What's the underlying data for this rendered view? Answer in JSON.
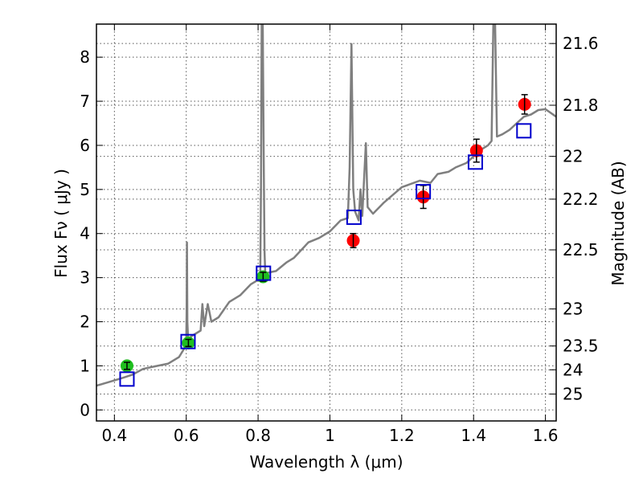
{
  "chart_data": {
    "type": "scatter",
    "xlabel": "Wavelength  λ (μm)",
    "ylabel": "Flux  Fν  ( μJy )",
    "y2label": "Magnitude (AB)",
    "xlim": [
      0.35,
      1.63
    ],
    "ylim": [
      -0.25,
      8.75
    ],
    "grid": true,
    "x_ticks": [
      0.4,
      0.6,
      0.8,
      1.0,
      1.2,
      1.4,
      1.6
    ],
    "x_tick_labels": [
      "0.4",
      "0.6",
      "0.8",
      "1",
      "1.2",
      "1.4",
      "1.6"
    ],
    "y_ticks": [
      0,
      1,
      2,
      3,
      4,
      5,
      6,
      7,
      8
    ],
    "y_tick_labels": [
      "0",
      "1",
      "2",
      "3",
      "4",
      "5",
      "6",
      "7",
      "8"
    ],
    "y2_ticks": [
      {
        "label": "21.6",
        "flux": 8.31
      },
      {
        "label": "21.8",
        "flux": 6.91
      },
      {
        "label": "22",
        "flux": 5.75
      },
      {
        "label": "22.2",
        "flux": 4.78
      },
      {
        "label": "22.5",
        "flux": 3.63
      },
      {
        "label": "23",
        "flux": 2.29
      },
      {
        "label": "23.5",
        "flux": 1.45
      },
      {
        "label": "24",
        "flux": 0.91
      },
      {
        "label": "25",
        "flux": 0.36
      }
    ],
    "colors": {
      "spectrum": "#7f7f7f",
      "green_points": "#1fbf1f",
      "red_points": "#ff0000",
      "model_squares": "#0000cc",
      "error_bars": "#000000"
    },
    "series": [
      {
        "marker": "circle-green",
        "points": [
          {
            "x": 0.435,
            "y": 1.0,
            "err": 0.08
          },
          {
            "x": 0.606,
            "y": 1.52,
            "err": 0.08
          },
          {
            "x": 0.814,
            "y": 3.02,
            "err": 0.1
          }
        ]
      },
      {
        "marker": "circle-red",
        "points": [
          {
            "x": 1.065,
            "y": 3.84,
            "err": 0.16
          },
          {
            "x": 1.26,
            "y": 4.83,
            "err": 0.26
          },
          {
            "x": 1.408,
            "y": 5.88,
            "err": 0.26
          },
          {
            "x": 1.542,
            "y": 6.93,
            "err": 0.22
          }
        ]
      },
      {
        "marker": "square-blue",
        "points": [
          {
            "x": 0.435,
            "y": 0.7
          },
          {
            "x": 0.605,
            "y": 1.55
          },
          {
            "x": 0.815,
            "y": 3.1
          },
          {
            "x": 1.067,
            "y": 4.37
          },
          {
            "x": 1.26,
            "y": 4.95
          },
          {
            "x": 1.405,
            "y": 5.62
          },
          {
            "x": 1.54,
            "y": 6.33
          }
        ]
      },
      {
        "marker": "line-gray",
        "points": [
          [
            0.35,
            0.55
          ],
          [
            0.38,
            0.62
          ],
          [
            0.42,
            0.72
          ],
          [
            0.45,
            0.8
          ],
          [
            0.48,
            0.93
          ],
          [
            0.52,
            1.0
          ],
          [
            0.55,
            1.05
          ],
          [
            0.58,
            1.2
          ],
          [
            0.595,
            1.4
          ],
          [
            0.6,
            1.55
          ],
          [
            0.601,
            2.2
          ],
          [
            0.602,
            3.8
          ],
          [
            0.603,
            2.0
          ],
          [
            0.605,
            1.62
          ],
          [
            0.62,
            1.7
          ],
          [
            0.64,
            1.8
          ],
          [
            0.645,
            2.4
          ],
          [
            0.65,
            1.9
          ],
          [
            0.66,
            2.4
          ],
          [
            0.67,
            2.0
          ],
          [
            0.69,
            2.1
          ],
          [
            0.72,
            2.45
          ],
          [
            0.75,
            2.6
          ],
          [
            0.78,
            2.85
          ],
          [
            0.8,
            2.95
          ],
          [
            0.806,
            3.05
          ],
          [
            0.808,
            5.0
          ],
          [
            0.81,
            8.75
          ],
          [
            0.813,
            8.75
          ],
          [
            0.816,
            5.5
          ],
          [
            0.818,
            3.6
          ],
          [
            0.82,
            3.1
          ],
          [
            0.85,
            3.15
          ],
          [
            0.88,
            3.35
          ],
          [
            0.9,
            3.45
          ],
          [
            0.94,
            3.8
          ],
          [
            0.97,
            3.9
          ],
          [
            1.0,
            4.05
          ],
          [
            1.03,
            4.3
          ],
          [
            1.05,
            4.35
          ],
          [
            1.055,
            5.5
          ],
          [
            1.06,
            8.3
          ],
          [
            1.065,
            5.0
          ],
          [
            1.07,
            4.5
          ],
          [
            1.08,
            4.3
          ],
          [
            1.085,
            5.0
          ],
          [
            1.09,
            4.4
          ],
          [
            1.1,
            6.05
          ],
          [
            1.105,
            4.6
          ],
          [
            1.12,
            4.45
          ],
          [
            1.15,
            4.7
          ],
          [
            1.2,
            5.05
          ],
          [
            1.25,
            5.2
          ],
          [
            1.28,
            5.15
          ],
          [
            1.3,
            5.35
          ],
          [
            1.33,
            5.4
          ],
          [
            1.35,
            5.5
          ],
          [
            1.38,
            5.6
          ],
          [
            1.4,
            5.75
          ],
          [
            1.42,
            5.9
          ],
          [
            1.44,
            6.0
          ],
          [
            1.45,
            6.1
          ],
          [
            1.455,
            8.75
          ],
          [
            1.46,
            8.75
          ],
          [
            1.465,
            6.2
          ],
          [
            1.48,
            6.25
          ],
          [
            1.5,
            6.35
          ],
          [
            1.52,
            6.5
          ],
          [
            1.54,
            6.65
          ],
          [
            1.56,
            6.7
          ],
          [
            1.58,
            6.8
          ],
          [
            1.6,
            6.82
          ],
          [
            1.63,
            6.65
          ]
        ]
      }
    ]
  }
}
